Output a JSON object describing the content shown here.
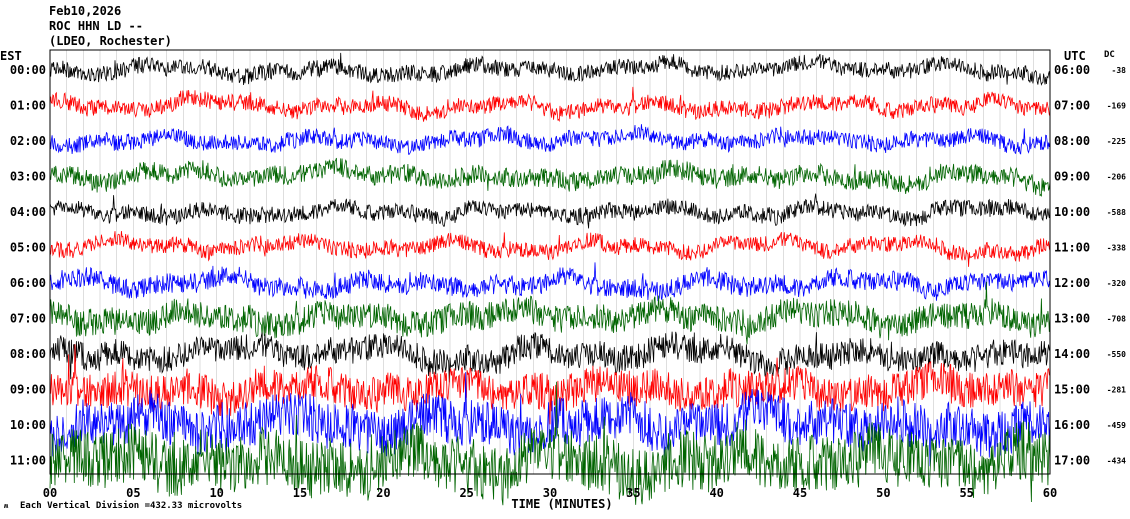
{
  "header": {
    "date": "Feb10,2026",
    "station": "ROC HHN LD --",
    "network": "(LDEO, Rochester)"
  },
  "left_axis_title": "EST",
  "right_axis_title": "UTC",
  "dc_title": "DC",
  "footer": {
    "scale_prefix": "Each Vertical Division =",
    "scale_value": "432.33 microvolts",
    "xlabel": "TIME (MINUTES)"
  },
  "colors": {
    "black": "#000000",
    "red": "#ff0000",
    "blue": "#0000ff",
    "green": "#006400"
  },
  "chart_data": {
    "type": "line",
    "title": "ROC HHN LD --",
    "xlabel": "TIME (MINUTES)",
    "xlim": [
      0,
      60
    ],
    "x_ticks": [
      "00",
      "05",
      "10",
      "15",
      "20",
      "25",
      "30",
      "35",
      "40",
      "45",
      "50",
      "55",
      "60"
    ],
    "grid": true,
    "rows": [
      {
        "est": "00:00",
        "utc": "06:00",
        "dc": "-38",
        "color": "black",
        "amplitude": 1.0
      },
      {
        "est": "01:00",
        "utc": "07:00",
        "dc": "-169",
        "color": "red",
        "amplitude": 1.0
      },
      {
        "est": "02:00",
        "utc": "08:00",
        "dc": "-225",
        "color": "blue",
        "amplitude": 1.0
      },
      {
        "est": "03:00",
        "utc": "09:00",
        "dc": "-206",
        "color": "green",
        "amplitude": 1.1
      },
      {
        "est": "04:00",
        "utc": "10:00",
        "dc": "-588",
        "color": "black",
        "amplitude": 1.0
      },
      {
        "est": "05:00",
        "utc": "11:00",
        "dc": "-338",
        "color": "red",
        "amplitude": 1.0
      },
      {
        "est": "06:00",
        "utc": "12:00",
        "dc": "-320",
        "color": "blue",
        "amplitude": 1.1
      },
      {
        "est": "07:00",
        "utc": "13:00",
        "dc": "-708",
        "color": "green",
        "amplitude": 1.3
      },
      {
        "est": "08:00",
        "utc": "14:00",
        "dc": "-550",
        "color": "black",
        "amplitude": 1.3
      },
      {
        "est": "09:00",
        "utc": "15:00",
        "dc": "-281",
        "color": "red",
        "amplitude": 1.5
      },
      {
        "est": "10:00",
        "utc": "16:00",
        "dc": "-459",
        "color": "blue",
        "amplitude": 1.7
      },
      {
        "est": "11:00",
        "utc": "17:00",
        "dc": "-434",
        "color": "green",
        "amplitude": 1.9
      }
    ]
  }
}
